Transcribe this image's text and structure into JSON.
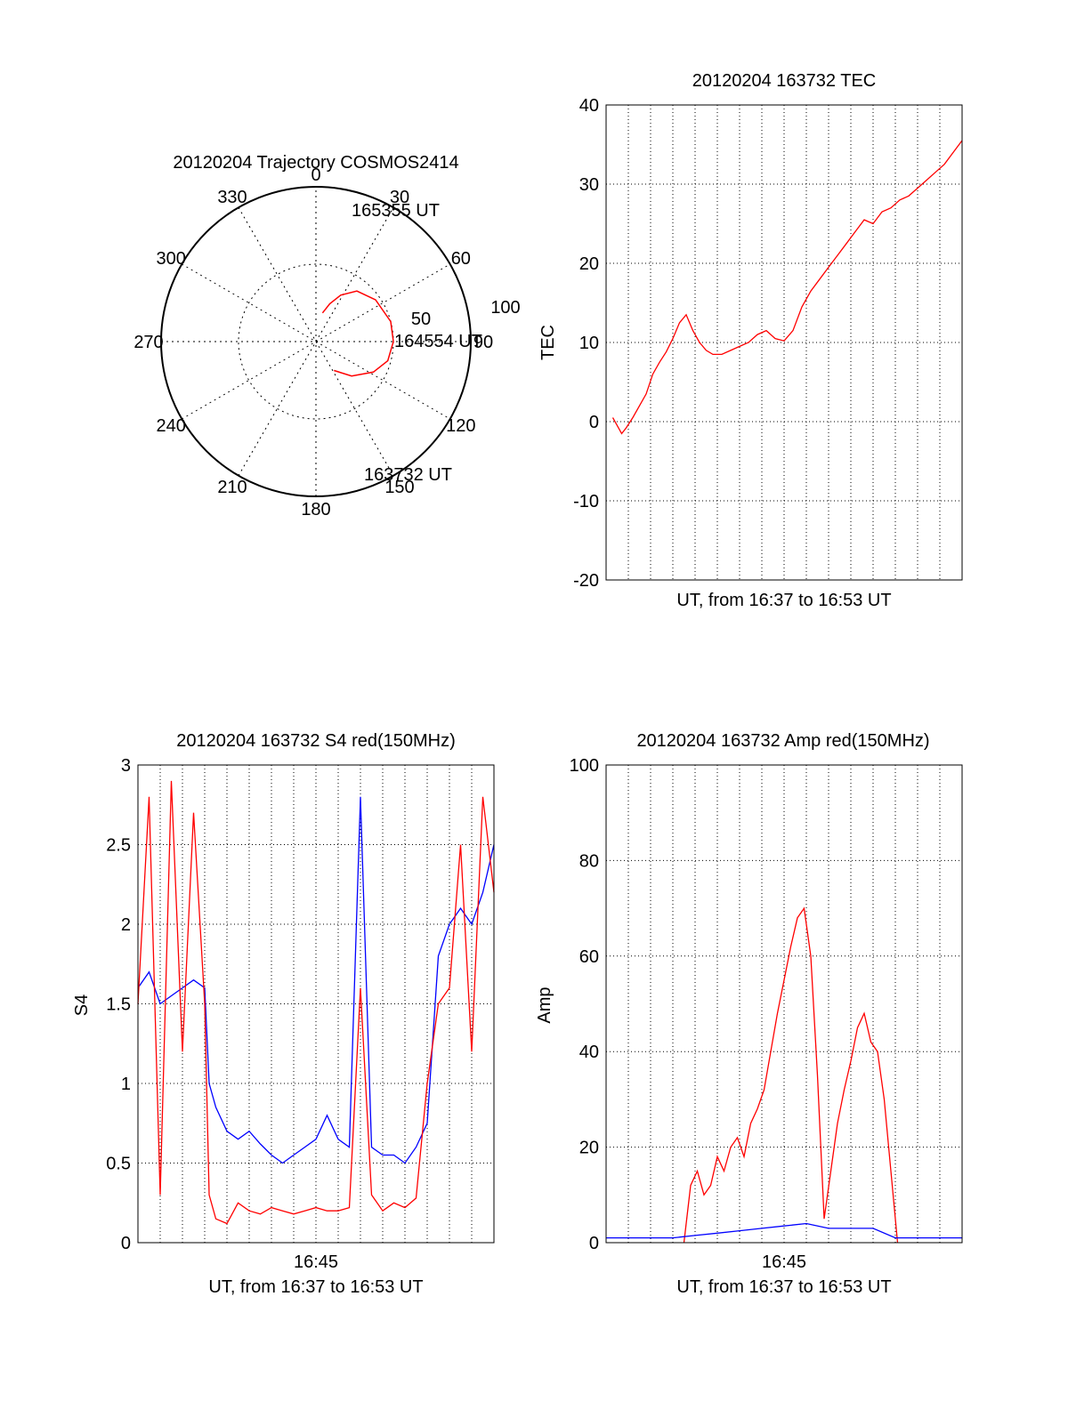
{
  "figure_id": "",
  "chart_data": [
    {
      "type": "polar",
      "title": "20120204 Trajectory COSMOS2414",
      "azimuth_labels": [
        "0",
        "30",
        "60",
        "90",
        "120",
        "150",
        "180",
        "210",
        "240",
        "270",
        "300",
        "330"
      ],
      "radius_labels": [
        "50",
        "100"
      ],
      "grid": true,
      "trajectory": {
        "color": "#ff0000",
        "points": [
          {
            "azimuth_deg": 13,
            "elevation": 19
          },
          {
            "azimuth_deg": 20,
            "elevation": 26
          },
          {
            "azimuth_deg": 28,
            "elevation": 34
          },
          {
            "azimuth_deg": 39,
            "elevation": 42
          },
          {
            "azimuth_deg": 55,
            "elevation": 47
          },
          {
            "azimuth_deg": 75,
            "elevation": 50
          },
          {
            "azimuth_deg": 90,
            "elevation": 50
          },
          {
            "azimuth_deg": 105,
            "elevation": 48
          },
          {
            "azimuth_deg": 118,
            "elevation": 42
          },
          {
            "azimuth_deg": 134,
            "elevation": 32
          },
          {
            "azimuth_deg": 148,
            "elevation": 22
          }
        ],
        "labels": [
          {
            "text": "165355 UT",
            "azimuth_deg": 13,
            "elevation": 19
          },
          {
            "text": "164554 UT",
            "azimuth_deg": 90,
            "elevation": 50
          },
          {
            "text": "163732 UT",
            "azimuth_deg": 148,
            "elevation": 22
          }
        ]
      }
    },
    {
      "type": "line",
      "title": "20120204 163732 TEC",
      "xlabel": "UT, from 16:37 to 16:53 UT",
      "ylabel": "TEC",
      "xlim": [
        0,
        16
      ],
      "ylim": [
        -20,
        40
      ],
      "yticks": [
        "-20",
        "-10",
        "0",
        "10",
        "20",
        "30",
        "40"
      ],
      "grid": true,
      "series": [
        {
          "color": "#ff0000",
          "x": [
            0.3,
            0.5,
            0.7,
            0.9,
            1.2,
            1.5,
            1.8,
            2.1,
            2.4,
            2.7,
            3.0,
            3.3,
            3.6,
            3.9,
            4.2,
            4.5,
            4.8,
            5.2,
            5.6,
            6.0,
            6.4,
            6.8,
            7.2,
            7.6,
            8.0,
            8.4,
            8.8,
            9.2,
            9.6,
            10.0,
            10.4,
            10.8,
            11.2,
            11.6,
            12.0,
            12.4,
            12.8,
            13.2,
            13.6,
            14.0,
            14.4,
            14.8,
            15.2,
            15.6,
            16.0
          ],
          "values": [
            0.5,
            -0.5,
            -1.5,
            -0.8,
            0.5,
            2.0,
            3.5,
            6.0,
            7.5,
            8.8,
            10.5,
            12.5,
            13.5,
            11.5,
            10.0,
            9.0,
            8.5,
            8.5,
            9.0,
            9.5,
            10.0,
            11.0,
            11.5,
            10.5,
            10.2,
            11.5,
            14.5,
            16.5,
            18.0,
            19.5,
            21.0,
            22.5,
            24.0,
            25.5,
            25.0,
            26.5,
            27.0,
            28.0,
            28.5,
            29.5,
            30.5,
            31.5,
            32.5,
            34.0,
            35.5
          ]
        }
      ]
    },
    {
      "type": "line",
      "title": "20120204 163732 S4 red(150MHz)",
      "xlabel": "UT, from 16:37 to 16:53 UT",
      "ylabel": "S4",
      "xticklabel": "16:45",
      "xtick_value": 8,
      "xlim": [
        0,
        16
      ],
      "ylim": [
        0,
        3
      ],
      "yticks": [
        "0",
        "0.5",
        "1",
        "1.5",
        "2",
        "2.5",
        "3"
      ],
      "grid": true,
      "series": [
        {
          "color": "#0000ff",
          "x": [
            0,
            0.5,
            1.0,
            1.5,
            2.0,
            2.5,
            3.0,
            3.2,
            3.5,
            4.0,
            4.5,
            5.0,
            5.5,
            6.0,
            6.5,
            7.0,
            7.5,
            8.0,
            8.5,
            9.0,
            9.5,
            10.0,
            10.5,
            11.0,
            11.5,
            12.0,
            12.5,
            13.0,
            13.5,
            14.0,
            14.5,
            15.0,
            15.5,
            16.0
          ],
          "values": [
            1.6,
            1.7,
            1.5,
            1.55,
            1.6,
            1.65,
            1.6,
            1.0,
            0.85,
            0.7,
            0.65,
            0.7,
            0.62,
            0.55,
            0.5,
            0.55,
            0.6,
            0.65,
            0.8,
            0.65,
            0.6,
            2.8,
            0.6,
            0.55,
            0.55,
            0.5,
            0.6,
            0.75,
            1.8,
            2.0,
            2.1,
            2.0,
            2.2,
            2.5
          ]
        },
        {
          "color": "#ff0000",
          "x": [
            0,
            0.5,
            1.0,
            1.5,
            2.0,
            2.5,
            3.0,
            3.2,
            3.5,
            4.0,
            4.5,
            5.0,
            5.5,
            6.0,
            6.5,
            7.0,
            7.5,
            8.0,
            8.5,
            9.0,
            9.5,
            10.0,
            10.5,
            11.0,
            11.5,
            12.0,
            12.5,
            13.0,
            13.5,
            14.0,
            14.5,
            15.0,
            15.5,
            16.0
          ],
          "values": [
            1.5,
            2.8,
            0.3,
            2.9,
            1.2,
            2.7,
            1.5,
            0.3,
            0.15,
            0.12,
            0.25,
            0.2,
            0.18,
            0.22,
            0.2,
            0.18,
            0.2,
            0.22,
            0.2,
            0.2,
            0.22,
            1.6,
            0.3,
            0.2,
            0.25,
            0.22,
            0.28,
            1.0,
            1.5,
            1.6,
            2.5,
            1.2,
            2.8,
            2.2
          ]
        }
      ]
    },
    {
      "type": "line",
      "title": "20120204 163732 Amp red(150MHz)",
      "xlabel": "UT, from 16:37 to 16:53 UT",
      "ylabel": "Amp",
      "xticklabel": "16:45",
      "xtick_value": 8,
      "xlim": [
        0,
        16
      ],
      "ylim": [
        0,
        100
      ],
      "yticks": [
        "0",
        "20",
        "40",
        "60",
        "80",
        "100"
      ],
      "grid": true,
      "series": [
        {
          "color": "#ff0000",
          "x": [
            3.5,
            3.8,
            4.1,
            4.4,
            4.7,
            5.0,
            5.3,
            5.6,
            5.9,
            6.2,
            6.5,
            6.8,
            7.1,
            7.4,
            7.7,
            8.0,
            8.3,
            8.6,
            8.9,
            9.2,
            9.5,
            9.8,
            10.1,
            10.4,
            10.7,
            11.0,
            11.3,
            11.6,
            11.9,
            12.2,
            12.5,
            12.8,
            13.1
          ],
          "values": [
            0,
            12,
            15,
            10,
            12,
            18,
            15,
            20,
            22,
            18,
            25,
            28,
            32,
            40,
            48,
            55,
            62,
            68,
            70,
            60,
            35,
            5,
            15,
            25,
            32,
            38,
            45,
            48,
            42,
            40,
            30,
            15,
            0
          ]
        },
        {
          "color": "#0000ff",
          "x": [
            0,
            1,
            2,
            3,
            4,
            5,
            6,
            7,
            8,
            9,
            10,
            11,
            12,
            13,
            14,
            15,
            16
          ],
          "values": [
            1,
            1,
            1,
            1,
            1.5,
            2,
            2.5,
            3,
            3.5,
            4,
            3,
            3,
            3,
            1,
            1,
            1,
            1
          ]
        }
      ]
    }
  ]
}
